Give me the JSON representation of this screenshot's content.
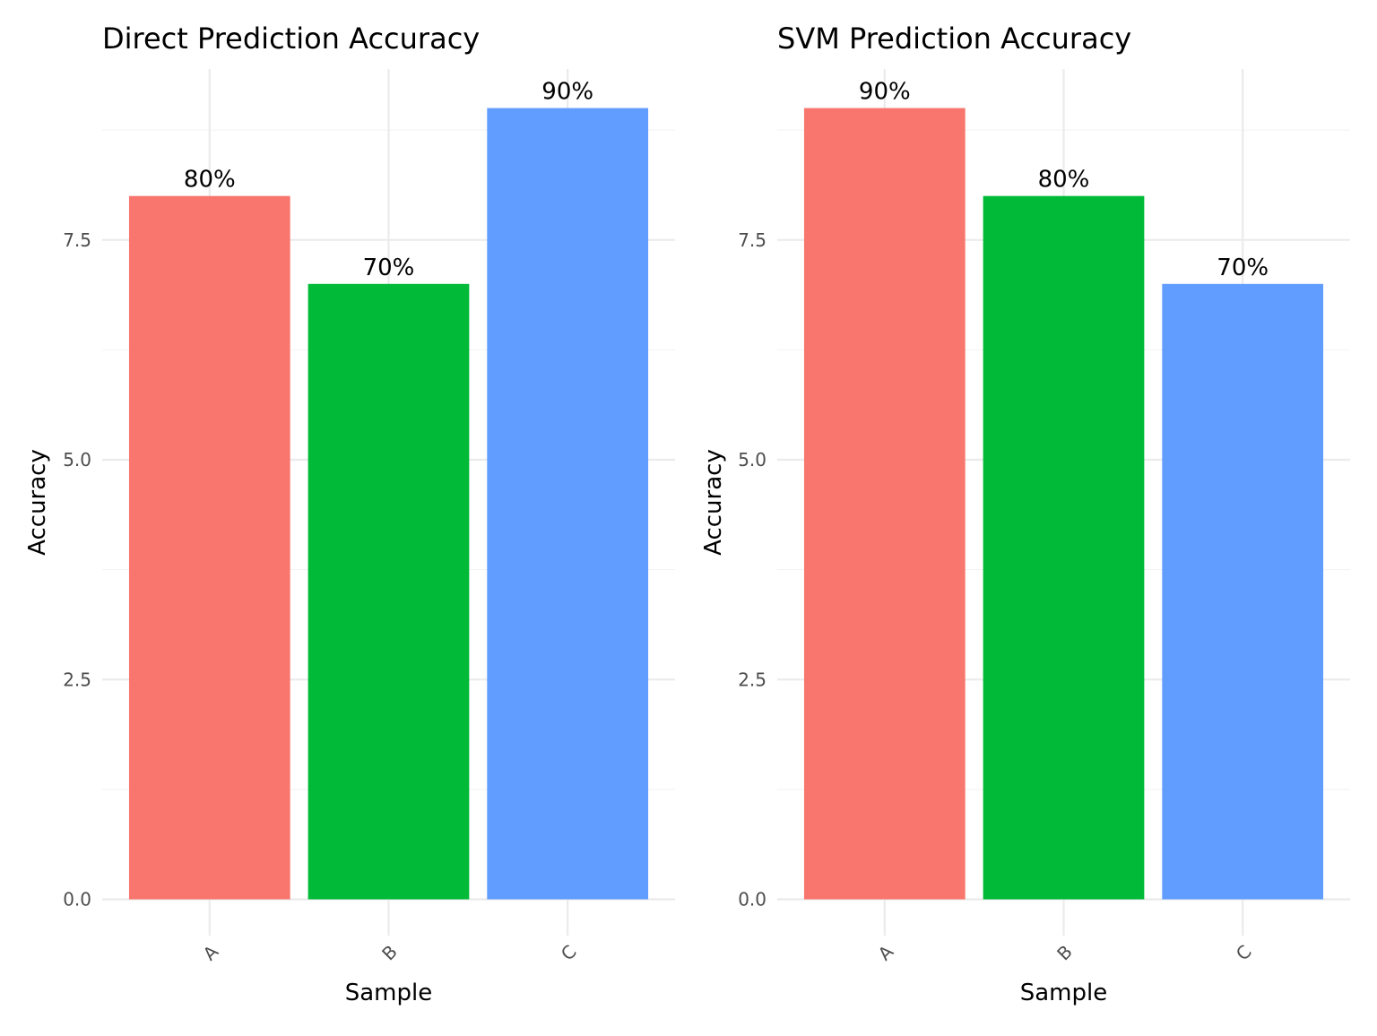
{
  "chart_data": [
    {
      "type": "bar",
      "title": "Direct Prediction Accuracy",
      "xlabel": "Sample",
      "ylabel": "Accuracy",
      "categories": [
        "A",
        "B",
        "C"
      ],
      "values": [
        8,
        7,
        9
      ],
      "data_labels": [
        "80%",
        "70%",
        "90%"
      ],
      "colors": [
        "#F8766D",
        "#00BA38",
        "#619CFF"
      ],
      "ylim": [
        0,
        9
      ],
      "yticks": [
        0,
        2.5,
        5,
        7.5
      ],
      "ytick_labels": [
        "0.0",
        "2.5",
        "5.0",
        "7.5"
      ],
      "grid": true,
      "legend": "none"
    },
    {
      "type": "bar",
      "title": "SVM Prediction Accuracy",
      "xlabel": "Sample",
      "ylabel": "Accuracy",
      "categories": [
        "A",
        "B",
        "C"
      ],
      "values": [
        9,
        8,
        7
      ],
      "data_labels": [
        "90%",
        "80%",
        "70%"
      ],
      "colors": [
        "#F8766D",
        "#00BA38",
        "#619CFF"
      ],
      "ylim": [
        0,
        9
      ],
      "yticks": [
        0,
        2.5,
        5,
        7.5
      ],
      "ytick_labels": [
        "0.0",
        "2.5",
        "5.0",
        "7.5"
      ],
      "grid": true,
      "legend": "none"
    }
  ]
}
